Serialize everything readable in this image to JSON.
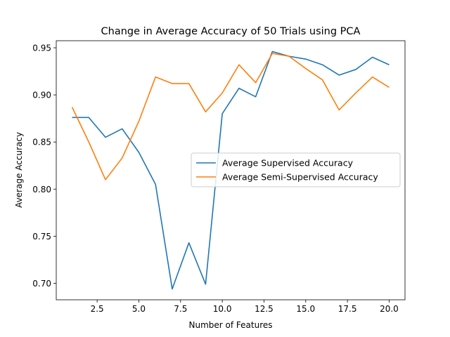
{
  "chart_data": {
    "type": "line",
    "title": "Change in Average Accuracy of 50 Trials using PCA",
    "xlabel": "Number of Features",
    "ylabel": "Average Accuracy",
    "xlim": [
      0.05,
      20.95
    ],
    "ylim": [
      0.6825,
      0.9575
    ],
    "xticks": [
      2.5,
      5.0,
      7.5,
      10.0,
      12.5,
      15.0,
      17.5,
      20.0
    ],
    "xtick_labels": [
      "2.5",
      "5.0",
      "7.5",
      "10.0",
      "12.5",
      "15.0",
      "17.5",
      "20.0"
    ],
    "yticks": [
      0.7,
      0.75,
      0.8,
      0.85,
      0.9,
      0.95
    ],
    "ytick_labels": [
      "0.70",
      "0.75",
      "0.80",
      "0.85",
      "0.90",
      "0.95"
    ],
    "grid": false,
    "legend_position": "center-right",
    "x": [
      1,
      2,
      3,
      4,
      5,
      6,
      7,
      8,
      9,
      10,
      11,
      12,
      13,
      14,
      15,
      16,
      17,
      18,
      19,
      20
    ],
    "series": [
      {
        "name": "Average Supervised Accuracy",
        "color": "#1f77b4",
        "values": [
          0.876,
          0.876,
          0.855,
          0.864,
          0.839,
          0.805,
          0.694,
          0.743,
          0.699,
          0.88,
          0.907,
          0.898,
          0.946,
          0.941,
          0.938,
          0.932,
          0.921,
          0.927,
          0.94,
          0.932
        ]
      },
      {
        "name": "Average Semi-Supervised Accuracy",
        "color": "#ff7f0e",
        "values": [
          0.887,
          0.85,
          0.81,
          0.833,
          0.872,
          0.919,
          0.912,
          0.912,
          0.882,
          0.902,
          0.932,
          0.913,
          0.944,
          0.941,
          0.928,
          0.916,
          0.884,
          0.902,
          0.919,
          0.908
        ]
      }
    ]
  }
}
